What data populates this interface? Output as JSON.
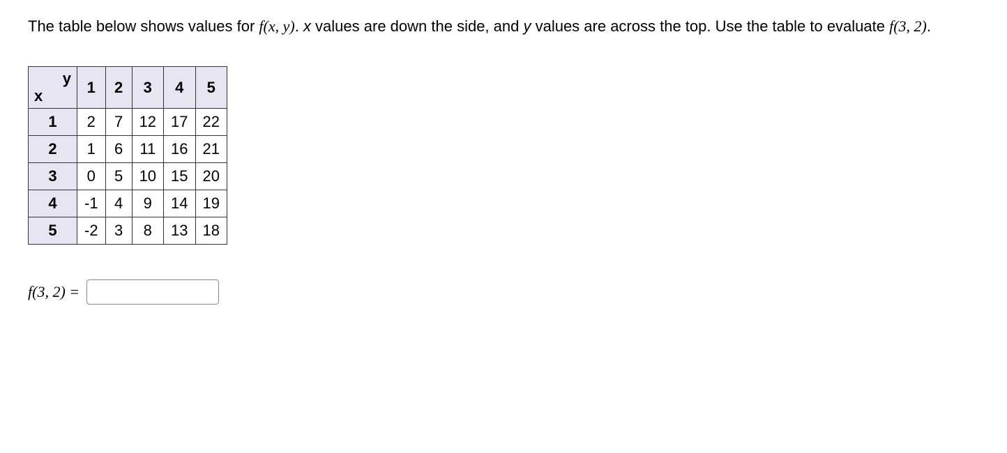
{
  "prompt": {
    "part1": "The table below shows values for ",
    "fxy": "f(x, y)",
    "part2": ". ",
    "part3_xital": "x",
    "part3": " values are down the side, and ",
    "part3_yital": "y",
    "part4": " values are across the top. Use the table to evaluate ",
    "eval": "f(3, 2)",
    "part5": "."
  },
  "table": {
    "corner_x": "x",
    "corner_y": "y",
    "y_headers": [
      "1",
      "2",
      "3",
      "4",
      "5"
    ],
    "x_headers": [
      "1",
      "2",
      "3",
      "4",
      "5"
    ],
    "rows": [
      [
        "2",
        "7",
        "12",
        "17",
        "22"
      ],
      [
        "1",
        "6",
        "11",
        "16",
        "21"
      ],
      [
        "0",
        "5",
        "10",
        "15",
        "20"
      ],
      [
        "-1",
        "4",
        "9",
        "14",
        "19"
      ],
      [
        "-2",
        "3",
        "8",
        "13",
        "18"
      ]
    ],
    "header_bg": "#e7e5f2",
    "border_color": "#333333",
    "cell_fontsize": 22
  },
  "answer": {
    "label": "f(3, 2) =",
    "value": ""
  }
}
